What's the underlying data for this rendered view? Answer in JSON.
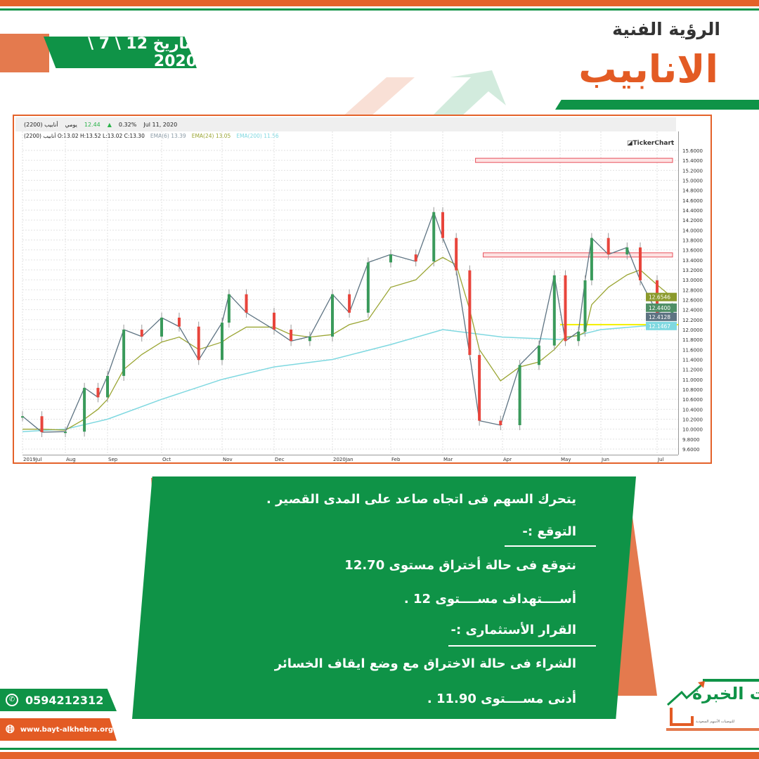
{
  "header": {
    "date_label": "بتاريخ 12 \\ 7 \\ 2020",
    "subtitle": "الرؤية الفنية",
    "title": "الانابيب"
  },
  "chart_header": {
    "symbol": "(2200) أنابيب",
    "period": "يومي",
    "last": "12.44",
    "change_pct": "0.32%",
    "date": "Jul 11, 2020",
    "ohlc": "(2200) أنابيب  O:13.02  H:13.52  L:13.02  C:13.30",
    "ema6_label": "EMA(6)",
    "ema6_val": "13.39",
    "ema24_label": "EMA(24)",
    "ema24_val": "13.05",
    "ema200_label": "EMA(200)",
    "ema200_val": "11.56",
    "brand": "TickerChart"
  },
  "chart_data": {
    "type": "line",
    "subtype": "candlestick-approx",
    "x_ticks": [
      {
        "label": "2019Jul",
        "date": "2019-07-01"
      },
      {
        "label": "Aug",
        "date": "2019-08-01"
      },
      {
        "label": "Sep",
        "date": "2019-09-01"
      },
      {
        "label": "Oct",
        "date": "2019-10-01"
      },
      {
        "label": "Nov",
        "date": "2019-11-01"
      },
      {
        "label": "Dec",
        "date": "2019-12-01"
      },
      {
        "label": "2020Jan",
        "date": "2020-01-01"
      },
      {
        "label": "Feb",
        "date": "2020-02-01"
      },
      {
        "label": "Mar",
        "date": "2020-03-01"
      },
      {
        "label": "Apr",
        "date": "2020-04-01"
      },
      {
        "label": "May",
        "date": "2020-05-01"
      },
      {
        "label": "Jun",
        "date": "2020-06-01"
      },
      {
        "label": "Jul",
        "date": "2020-07-01"
      }
    ],
    "ylim": [
      9.6,
      15.6
    ],
    "y_ticks": [
      15.6,
      15.4,
      15.2,
      15.0,
      14.8,
      14.6,
      14.4,
      14.2,
      14.0,
      13.8,
      13.6,
      13.4,
      13.2,
      13.0,
      12.8,
      12.6,
      12.4,
      12.2,
      12.0,
      11.8,
      11.6,
      11.4,
      11.2,
      11.0,
      10.8,
      10.6,
      10.4,
      10.2,
      10.0,
      9.8,
      9.6
    ],
    "y_axis_side": "right",
    "grid": true,
    "x": [
      "2019-07-01",
      "2019-07-15",
      "2019-08-01",
      "2019-08-15",
      "2019-08-25",
      "2019-09-01",
      "2019-09-10",
      "2019-09-20",
      "2019-10-01",
      "2019-10-10",
      "2019-10-20",
      "2019-11-01",
      "2019-11-05",
      "2019-11-15",
      "2019-12-01",
      "2019-12-10",
      "2019-12-20",
      "2020-01-01",
      "2020-01-10",
      "2020-01-20",
      "2020-02-01",
      "2020-02-15",
      "2020-02-25",
      "2020-03-01",
      "2020-03-08",
      "2020-03-15",
      "2020-03-20",
      "2020-03-31",
      "2020-04-10",
      "2020-04-20",
      "2020-04-28",
      "2020-05-05",
      "2020-05-15",
      "2020-05-20",
      "2020-05-25",
      "2020-06-05",
      "2020-06-15",
      "2020-06-22",
      "2020-07-01",
      "2020-07-09"
    ],
    "series": [
      {
        "name": "",
        "role": "price",
        "color": "#3a9a5b",
        "values": [
          10.26,
          9.94,
          9.95,
          10.83,
          10.64,
          11.07,
          12.0,
          11.86,
          12.24,
          12.06,
          11.39,
          12.14,
          12.71,
          12.34,
          12.0,
          11.77,
          11.86,
          12.71,
          12.34,
          13.35,
          13.51,
          13.37,
          14.36,
          13.84,
          13.19,
          11.49,
          10.17,
          10.08,
          11.29,
          11.68,
          13.09,
          11.77,
          11.96,
          12.99,
          13.84,
          13.51,
          13.65,
          12.99,
          12.34,
          12.44
        ]
      },
      {
        "name": "EMA(24)",
        "role": "ema24",
        "color": "#9aa533",
        "values": [
          10.0,
          10.0,
          9.98,
          10.2,
          10.4,
          10.6,
          11.2,
          11.5,
          11.75,
          11.85,
          11.6,
          11.75,
          11.85,
          12.05,
          12.05,
          11.9,
          11.85,
          11.9,
          12.1,
          12.2,
          12.85,
          13.0,
          13.35,
          13.45,
          13.3,
          12.4,
          11.6,
          10.97,
          11.25,
          11.35,
          11.6,
          11.85,
          11.88,
          11.95,
          12.5,
          12.85,
          13.1,
          13.2,
          12.9,
          12.65
        ]
      }
    ],
    "ema200": {
      "name": "EMA(200)",
      "color": "#7fd8e0",
      "x": [
        "2019-07-01",
        "2019-08-01",
        "2019-09-01",
        "2019-10-01",
        "2019-11-01",
        "2019-12-01",
        "2020-01-01",
        "2020-02-01",
        "2020-03-01",
        "2020-04-01",
        "2020-05-01",
        "2020-06-01",
        "2020-07-09"
      ],
      "values": [
        9.95,
        10.0,
        10.2,
        10.6,
        11.0,
        11.25,
        11.4,
        11.7,
        12.0,
        11.85,
        11.8,
        12.0,
        12.12
      ]
    },
    "levels": [
      {
        "value": 15.4,
        "from": "2020-03-18",
        "color": "#e8505b",
        "kind": "zone"
      },
      {
        "value": 13.5,
        "from": "2020-03-22",
        "color": "#e8505b",
        "kind": "zone"
      },
      {
        "value": 12.1,
        "from": "2020-05-01",
        "color": "#f4f000",
        "kind": "line"
      }
    ],
    "value_tags": [
      {
        "text": "12.6546",
        "value": 12.6546,
        "color": "#8b9a2c"
      },
      {
        "text": "12.4400",
        "value": 12.44,
        "color": "#4f8f66"
      },
      {
        "text": "12.4128",
        "value": 12.4128,
        "color": "#5d7382"
      },
      {
        "text": "12.1467",
        "value": 12.1467,
        "color": "#7fd8e0"
      }
    ]
  },
  "analysis": {
    "line1": "يتحرك السهم فى اتجاه صاعد  على المدى القصير .",
    "expect_heading": "التوقع :-",
    "line2": "نتوقع فى حالة أختراق مستوى 12.70",
    "line3": "أســــتهداف مســــتوى 12 .",
    "decision_heading": "القرار الأستثمارى :-",
    "line4": "الشراء فى حالة الاختراق مع وضع ايقاف  الخسائر",
    "line5": "أدنى مســــتوى 11.90 ."
  },
  "contact": {
    "phone": "0594212312",
    "website": "www.bayt-alkhebra.org",
    "phone_icon": "whatsapp-icon",
    "web_icon": "globe-icon"
  },
  "logo": {
    "text": "بيت الخبرة",
    "tagline": "للتوصيات الأسهم السعودية"
  },
  "colors": {
    "green": "#0f9347",
    "orange": "#e35b24",
    "up": "#3a9a5b",
    "down": "#e8453c"
  }
}
